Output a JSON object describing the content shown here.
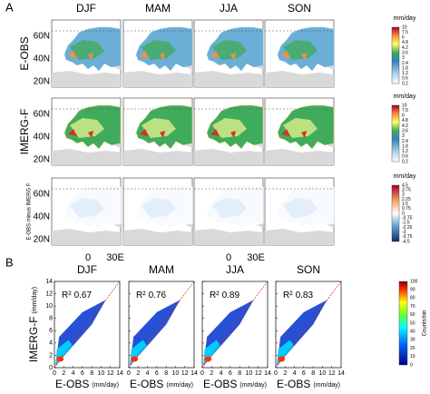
{
  "panel_a": {
    "label": "A",
    "seasons": [
      "DJF",
      "MAM",
      "JJA",
      "SON"
    ],
    "rows": [
      {
        "label": "E-OBS",
        "unit": "mm/day",
        "ticks": [
          10,
          7.5,
          6,
          4.8,
          4.2,
          3.6,
          3,
          2.4,
          1.8,
          1.2,
          0.6,
          0.2
        ]
      },
      {
        "label": "IMERG-F",
        "unit": "mm/day",
        "ticks": [
          10,
          7.5,
          6,
          4.8,
          4.2,
          3.6,
          3,
          2.4,
          1.8,
          1.2,
          0.6,
          0.2
        ]
      },
      {
        "label": "E-OBS minus IMERG F",
        "unit": "mm/day",
        "ticks": [
          4.5,
          3.75,
          3,
          2.25,
          1.5,
          0.75,
          0,
          -0.75,
          -1.5,
          -2.25,
          -3,
          -3.75,
          -4.5
        ]
      }
    ],
    "lat_ticks": [
      "60N",
      "40N",
      "20N"
    ],
    "lon_ticks": [
      "0",
      "30E"
    ]
  },
  "panel_b": {
    "label": "B",
    "seasons": [
      "DJF",
      "MAM",
      "JJA",
      "SON"
    ],
    "r2_label": "R²",
    "r2": [
      0.67,
      0.76,
      0.89,
      0.83
    ],
    "xlim": [
      0,
      14
    ],
    "ylim": [
      0,
      14
    ],
    "xticks": [
      0,
      2,
      4,
      6,
      8,
      10,
      12,
      14
    ],
    "yticks": [
      0,
      2,
      4,
      6,
      8,
      10,
      12,
      14
    ],
    "xlabel": "E-OBS",
    "xunit": "(mm/day)",
    "ylabel": "IMERG-F",
    "yunit": "(mm/day)",
    "colorbar_label": "Counts/bin",
    "colorbar_ticks": [
      100,
      90,
      80,
      70,
      60,
      50,
      40,
      30,
      20,
      10,
      0
    ]
  }
}
